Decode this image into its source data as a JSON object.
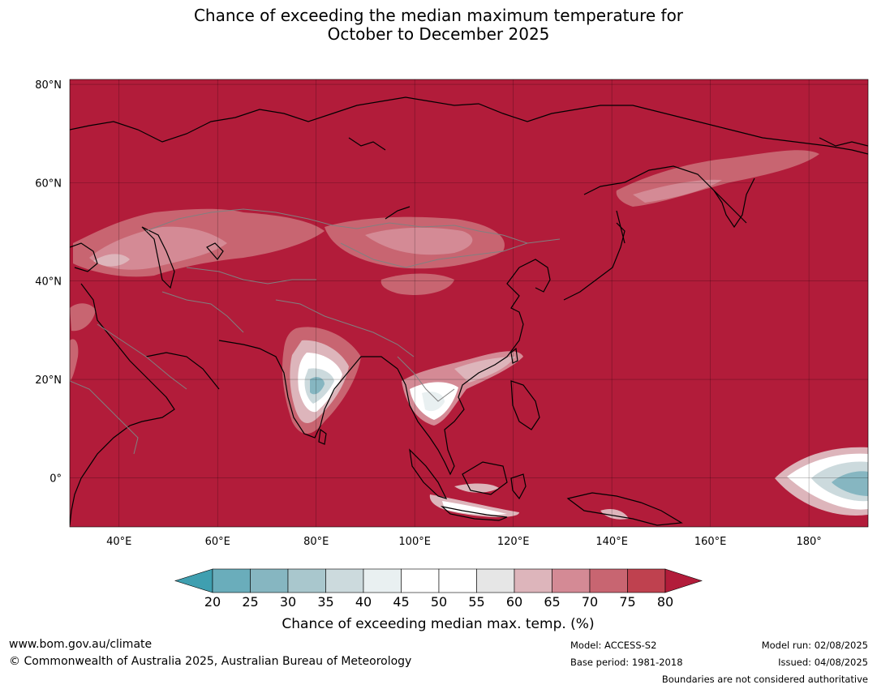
{
  "title": {
    "line1": "Chance of exceeding the median maximum temperature for",
    "line2": "October to December 2025"
  },
  "map": {
    "lon_range": [
      30,
      192
    ],
    "lat_range": [
      -10,
      81
    ],
    "lat_ticks": [
      {
        "value": 80,
        "label": "80°N"
      },
      {
        "value": 60,
        "label": "60°N"
      },
      {
        "value": 40,
        "label": "40°N"
      },
      {
        "value": 20,
        "label": "20°N"
      },
      {
        "value": 0,
        "label": "0°"
      }
    ],
    "lon_ticks": [
      {
        "value": 40,
        "label": "40°E"
      },
      {
        "value": 60,
        "label": "60°E"
      },
      {
        "value": 80,
        "label": "80°E"
      },
      {
        "value": 100,
        "label": "100°E"
      },
      {
        "value": 120,
        "label": "120°E"
      },
      {
        "value": 140,
        "label": "140°E"
      },
      {
        "value": 160,
        "label": "160°E"
      },
      {
        "value": 180,
        "label": "180°"
      }
    ],
    "background_color": "#b21c3a",
    "land_outline_color": "#000000",
    "border_color": "#808080"
  },
  "colorbar": {
    "ticks": [
      "20",
      "25",
      "30",
      "35",
      "40",
      "45",
      "50",
      "55",
      "60",
      "65",
      "70",
      "75",
      "80"
    ],
    "colors": [
      "#6aadbb",
      "#86b6c1",
      "#a9c7cd",
      "#ccdadd",
      "#e9f0f1",
      "#ffffff",
      "#ffffff",
      "#e6e6e6",
      "#ddb5bb",
      "#d48a95",
      "#c86571",
      "#bf414f"
    ],
    "under_color": "#3f9fb0",
    "over_color": "#b21c3a",
    "label": "Chance of exceeding median max. temp. (%)"
  },
  "footer": {
    "website": "www.bom.gov.au/climate",
    "copyright": "© Commonwealth of Australia 2025, Australian Bureau of Meteorology",
    "model": "Model: ACCESS-S2",
    "base_period": "Base period: 1981-2018",
    "model_run": "Model run: 02/08/2025",
    "issued": "Issued: 04/08/2025",
    "disclaimer": "Boundaries are not considered authoritative"
  }
}
